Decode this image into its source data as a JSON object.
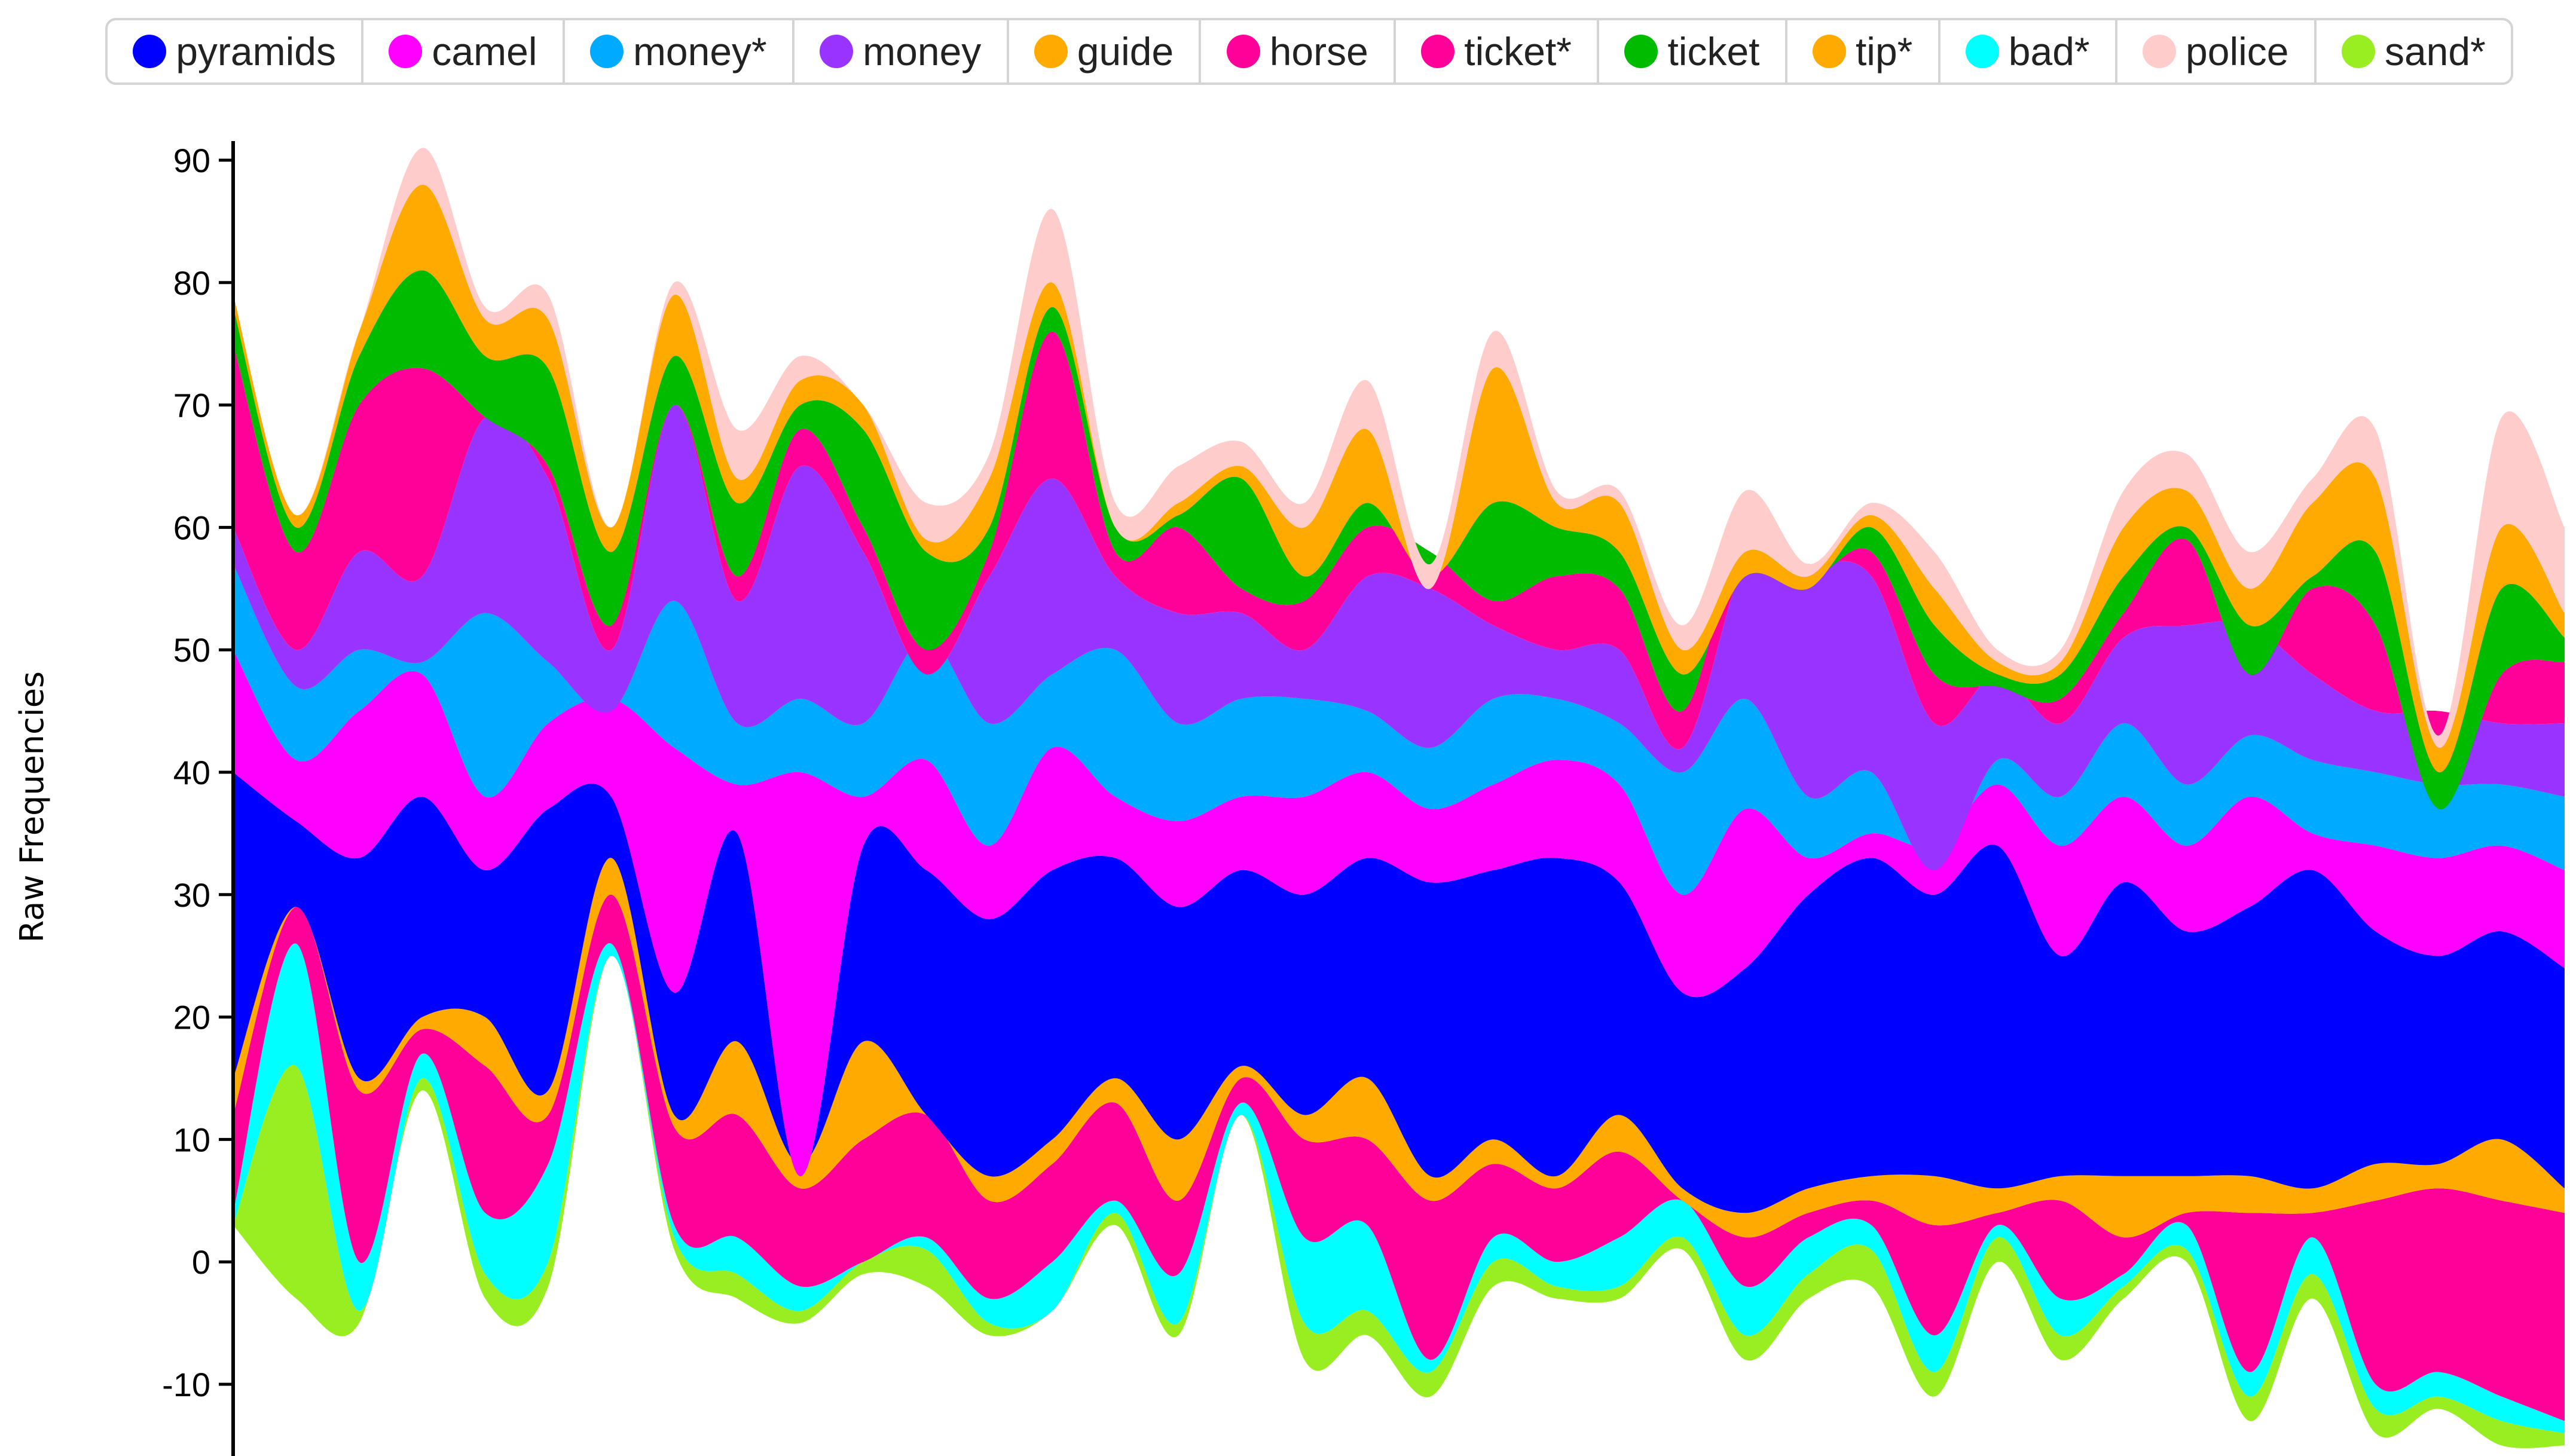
{
  "legend": {
    "items": [
      {
        "label": "pyramids",
        "color": "#0000ff"
      },
      {
        "label": "camel",
        "color": "#ff00ff"
      },
      {
        "label": "money*",
        "color": "#00aaff"
      },
      {
        "label": "money",
        "color": "#9933ff"
      },
      {
        "label": "guide",
        "color": "#ffaa00"
      },
      {
        "label": "horse",
        "color": "#ff0099"
      },
      {
        "label": "ticket*",
        "color": "#ff0099"
      },
      {
        "label": "ticket",
        "color": "#00bb00"
      },
      {
        "label": "tip*",
        "color": "#ffaa00"
      },
      {
        "label": "bad*",
        "color": "#00ffff"
      },
      {
        "label": "police",
        "color": "#ffcccc"
      },
      {
        "label": "sand*",
        "color": "#99ee22"
      }
    ]
  },
  "chart_data": {
    "type": "area",
    "stream_layout": "baseline-centered",
    "ylabel": "Raw Frequencies",
    "ylim": [
      -15,
      92
    ],
    "yticks": [
      -10,
      0,
      10,
      20,
      30,
      40,
      50,
      60,
      70,
      80,
      90
    ],
    "x": [
      0,
      1,
      2,
      3,
      4,
      5,
      6,
      7,
      8,
      9,
      10,
      11,
      12,
      13,
      14,
      15,
      16,
      17,
      18,
      19,
      20,
      21,
      22,
      23,
      24,
      25,
      26,
      27,
      28,
      29,
      30,
      31,
      32,
      33,
      34,
      35,
      36,
      37
    ],
    "grid": false,
    "layer_order": [
      [
        "sand*",
        "#99ee22"
      ],
      [
        "bad*",
        "#00ffff"
      ],
      [
        "police",
        "#ffcccc"
      ],
      [
        "ticket*",
        "#ff0099"
      ],
      [
        "tip*",
        "#ffaa00"
      ],
      [
        "pyramids",
        "#0000ff"
      ],
      [
        "camel",
        "#ff00ff"
      ],
      [
        "money*",
        "#00aaff"
      ],
      [
        "money",
        "#9933ff"
      ],
      [
        "horse",
        "#ff0099"
      ],
      [
        "ticket",
        "#00bb00"
      ],
      [
        "guide",
        "#ffaa00"
      ],
      [
        "police",
        "#ffcccc"
      ]
    ],
    "boundaries": [
      [
        3,
        -3,
        -5,
        14,
        -3,
        -2,
        25,
        1,
        -3,
        -5,
        -1,
        -2,
        -6,
        -4,
        3,
        -6,
        12,
        -8,
        -6,
        -11,
        -2,
        -3,
        -3,
        1,
        -8,
        -3,
        -2,
        -11,
        0,
        -8,
        -3,
        0,
        -13,
        -3,
        -14,
        -12,
        -15,
        -15
      ],
      [
        3,
        16,
        -4,
        15,
        -1,
        0,
        25,
        2,
        -1,
        -4,
        0,
        1,
        -5,
        -4,
        4,
        -5,
        12,
        -5,
        -4,
        -9,
        0,
        -2,
        -2,
        2,
        -6,
        -1,
        1,
        -9,
        2,
        -6,
        -2,
        1,
        -11,
        -1,
        -12,
        -11,
        -13,
        -14
      ],
      [
        4,
        26,
        0,
        17,
        4,
        8,
        26,
        3,
        2,
        -2,
        0,
        2,
        -3,
        0,
        5,
        -1,
        13,
        2,
        3,
        -8,
        2,
        0,
        2,
        5,
        -2,
        2,
        3,
        -6,
        3,
        -3,
        -1,
        3,
        -9,
        2,
        -10,
        -9,
        -11,
        -13
      ],
      [
        4,
        26,
        0,
        17,
        4,
        8,
        26,
        3,
        2,
        -2,
        0,
        2,
        -3,
        0,
        5,
        -1,
        13,
        2,
        3,
        -8,
        2,
        0,
        2,
        5,
        -2,
        2,
        3,
        -6,
        3,
        -3,
        -1,
        3,
        -9,
        2,
        -10,
        -9,
        -11,
        -13
      ],
      [
        12,
        29,
        14,
        19,
        16,
        12,
        30,
        11,
        12,
        6,
        10,
        12,
        5,
        8,
        13,
        5,
        15,
        10,
        10,
        5,
        8,
        6,
        9,
        5,
        2,
        4,
        5,
        3,
        4,
        5,
        2,
        4,
        4,
        4,
        5,
        6,
        5,
        4
      ],
      [
        15,
        29,
        15,
        20,
        20,
        14,
        33,
        12,
        18,
        8,
        18,
        12,
        7,
        10,
        15,
        10,
        16,
        12,
        15,
        7,
        10,
        7,
        12,
        6,
        4,
        6,
        7,
        7,
        6,
        7,
        7,
        7,
        7,
        6,
        8,
        8,
        10,
        6
      ],
      [
        40,
        36,
        33,
        38,
        32,
        37,
        38,
        22,
        35,
        7,
        34,
        32,
        28,
        32,
        33,
        29,
        32,
        30,
        33,
        31,
        32,
        33,
        31,
        22,
        24,
        30,
        33,
        30,
        34,
        25,
        31,
        27,
        29,
        32,
        27,
        25,
        27,
        24
      ],
      [
        50,
        41,
        45,
        48,
        38,
        44,
        46,
        42,
        39,
        40,
        38,
        41,
        34,
        42,
        38,
        36,
        38,
        38,
        40,
        37,
        39,
        41,
        39,
        30,
        37,
        33,
        35,
        34,
        39,
        34,
        38,
        34,
        38,
        35,
        34,
        33,
        34,
        32
      ],
      [
        57,
        47,
        50,
        49,
        53,
        49,
        45,
        54,
        44,
        46,
        44,
        51,
        44,
        48,
        50,
        44,
        46,
        46,
        45,
        42,
        46,
        46,
        44,
        40,
        46,
        38,
        40,
        32,
        41,
        38,
        44,
        39,
        43,
        41,
        40,
        39,
        39,
        38
      ],
      [
        60,
        50,
        58,
        56,
        69,
        64,
        50,
        70,
        54,
        65,
        58,
        48,
        56,
        64,
        56,
        53,
        53,
        50,
        56,
        55,
        52,
        50,
        50,
        42,
        57,
        57,
        56,
        44,
        48,
        44,
        51,
        52,
        52,
        48,
        45,
        45,
        44,
        44
      ],
      [
        75,
        58,
        70,
        73,
        69,
        65,
        52,
        70,
        56,
        68,
        60,
        50,
        58,
        76,
        58,
        60,
        55,
        54,
        60,
        58,
        54,
        56,
        55,
        45,
        60,
        56,
        58,
        48,
        47,
        46,
        53,
        59,
        48,
        55,
        52,
        37,
        48,
        49
      ],
      [
        78,
        60,
        74,
        81,
        74,
        73,
        58,
        74,
        62,
        70,
        68,
        58,
        60,
        78,
        60,
        61,
        64,
        56,
        62,
        56,
        62,
        60,
        58,
        48,
        56,
        55,
        60,
        52,
        48,
        48,
        56,
        60,
        52,
        56,
        58,
        40,
        55,
        51
      ],
      [
        79,
        61,
        76,
        88,
        77,
        77,
        60,
        79,
        64,
        72,
        70,
        59,
        64,
        80,
        60,
        62,
        65,
        60,
        68,
        55,
        73,
        62,
        62,
        50,
        58,
        56,
        61,
        55,
        49,
        49,
        60,
        63,
        55,
        62,
        64,
        42,
        60,
        53
      ],
      [
        79,
        61,
        76,
        91,
        78,
        79,
        60,
        80,
        68,
        74,
        70,
        62,
        66,
        86,
        62,
        65,
        67,
        62,
        72,
        57,
        76,
        63,
        63,
        52,
        63,
        57,
        62,
        58,
        50,
        50,
        63,
        66,
        58,
        64,
        68,
        43,
        69,
        60
      ]
    ],
    "x_screen_range": [
      390,
      4290
    ]
  }
}
